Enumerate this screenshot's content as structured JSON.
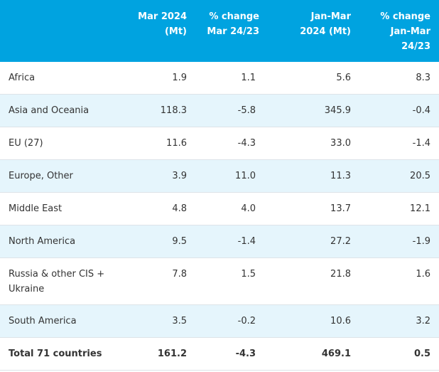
{
  "table": {
    "header": [
      "",
      "Mar 2024 (Mt)",
      "% change Mar 24/23",
      "Jan-Mar 2024 (Mt)",
      "% change Jan-Mar 24/23"
    ],
    "rows": [
      [
        "Africa",
        "1.9",
        "1.1",
        "5.6",
        "8.3"
      ],
      [
        "Asia and Oceania",
        "118.3",
        "-5.8",
        "345.9",
        "-0.4"
      ],
      [
        "EU (27)",
        "11.6",
        "-4.3",
        "33.0",
        "-1.4"
      ],
      [
        "Europe, Other",
        "3.9",
        "11.0",
        "11.3",
        "20.5"
      ],
      [
        "Middle East",
        "4.8",
        "4.0",
        "13.7",
        "12.1"
      ],
      [
        "North America",
        "9.5",
        "-1.4",
        "27.2",
        "-1.9"
      ],
      [
        "Russia & other CIS + Ukraine",
        "7.8",
        "1.5",
        "21.8",
        "1.6"
      ],
      [
        "South America",
        "3.5",
        "-0.2",
        "10.6",
        "3.2"
      ]
    ],
    "total": [
      "Total 71 countries",
      "161.2",
      "-4.3",
      "469.1",
      "0.5"
    ]
  }
}
